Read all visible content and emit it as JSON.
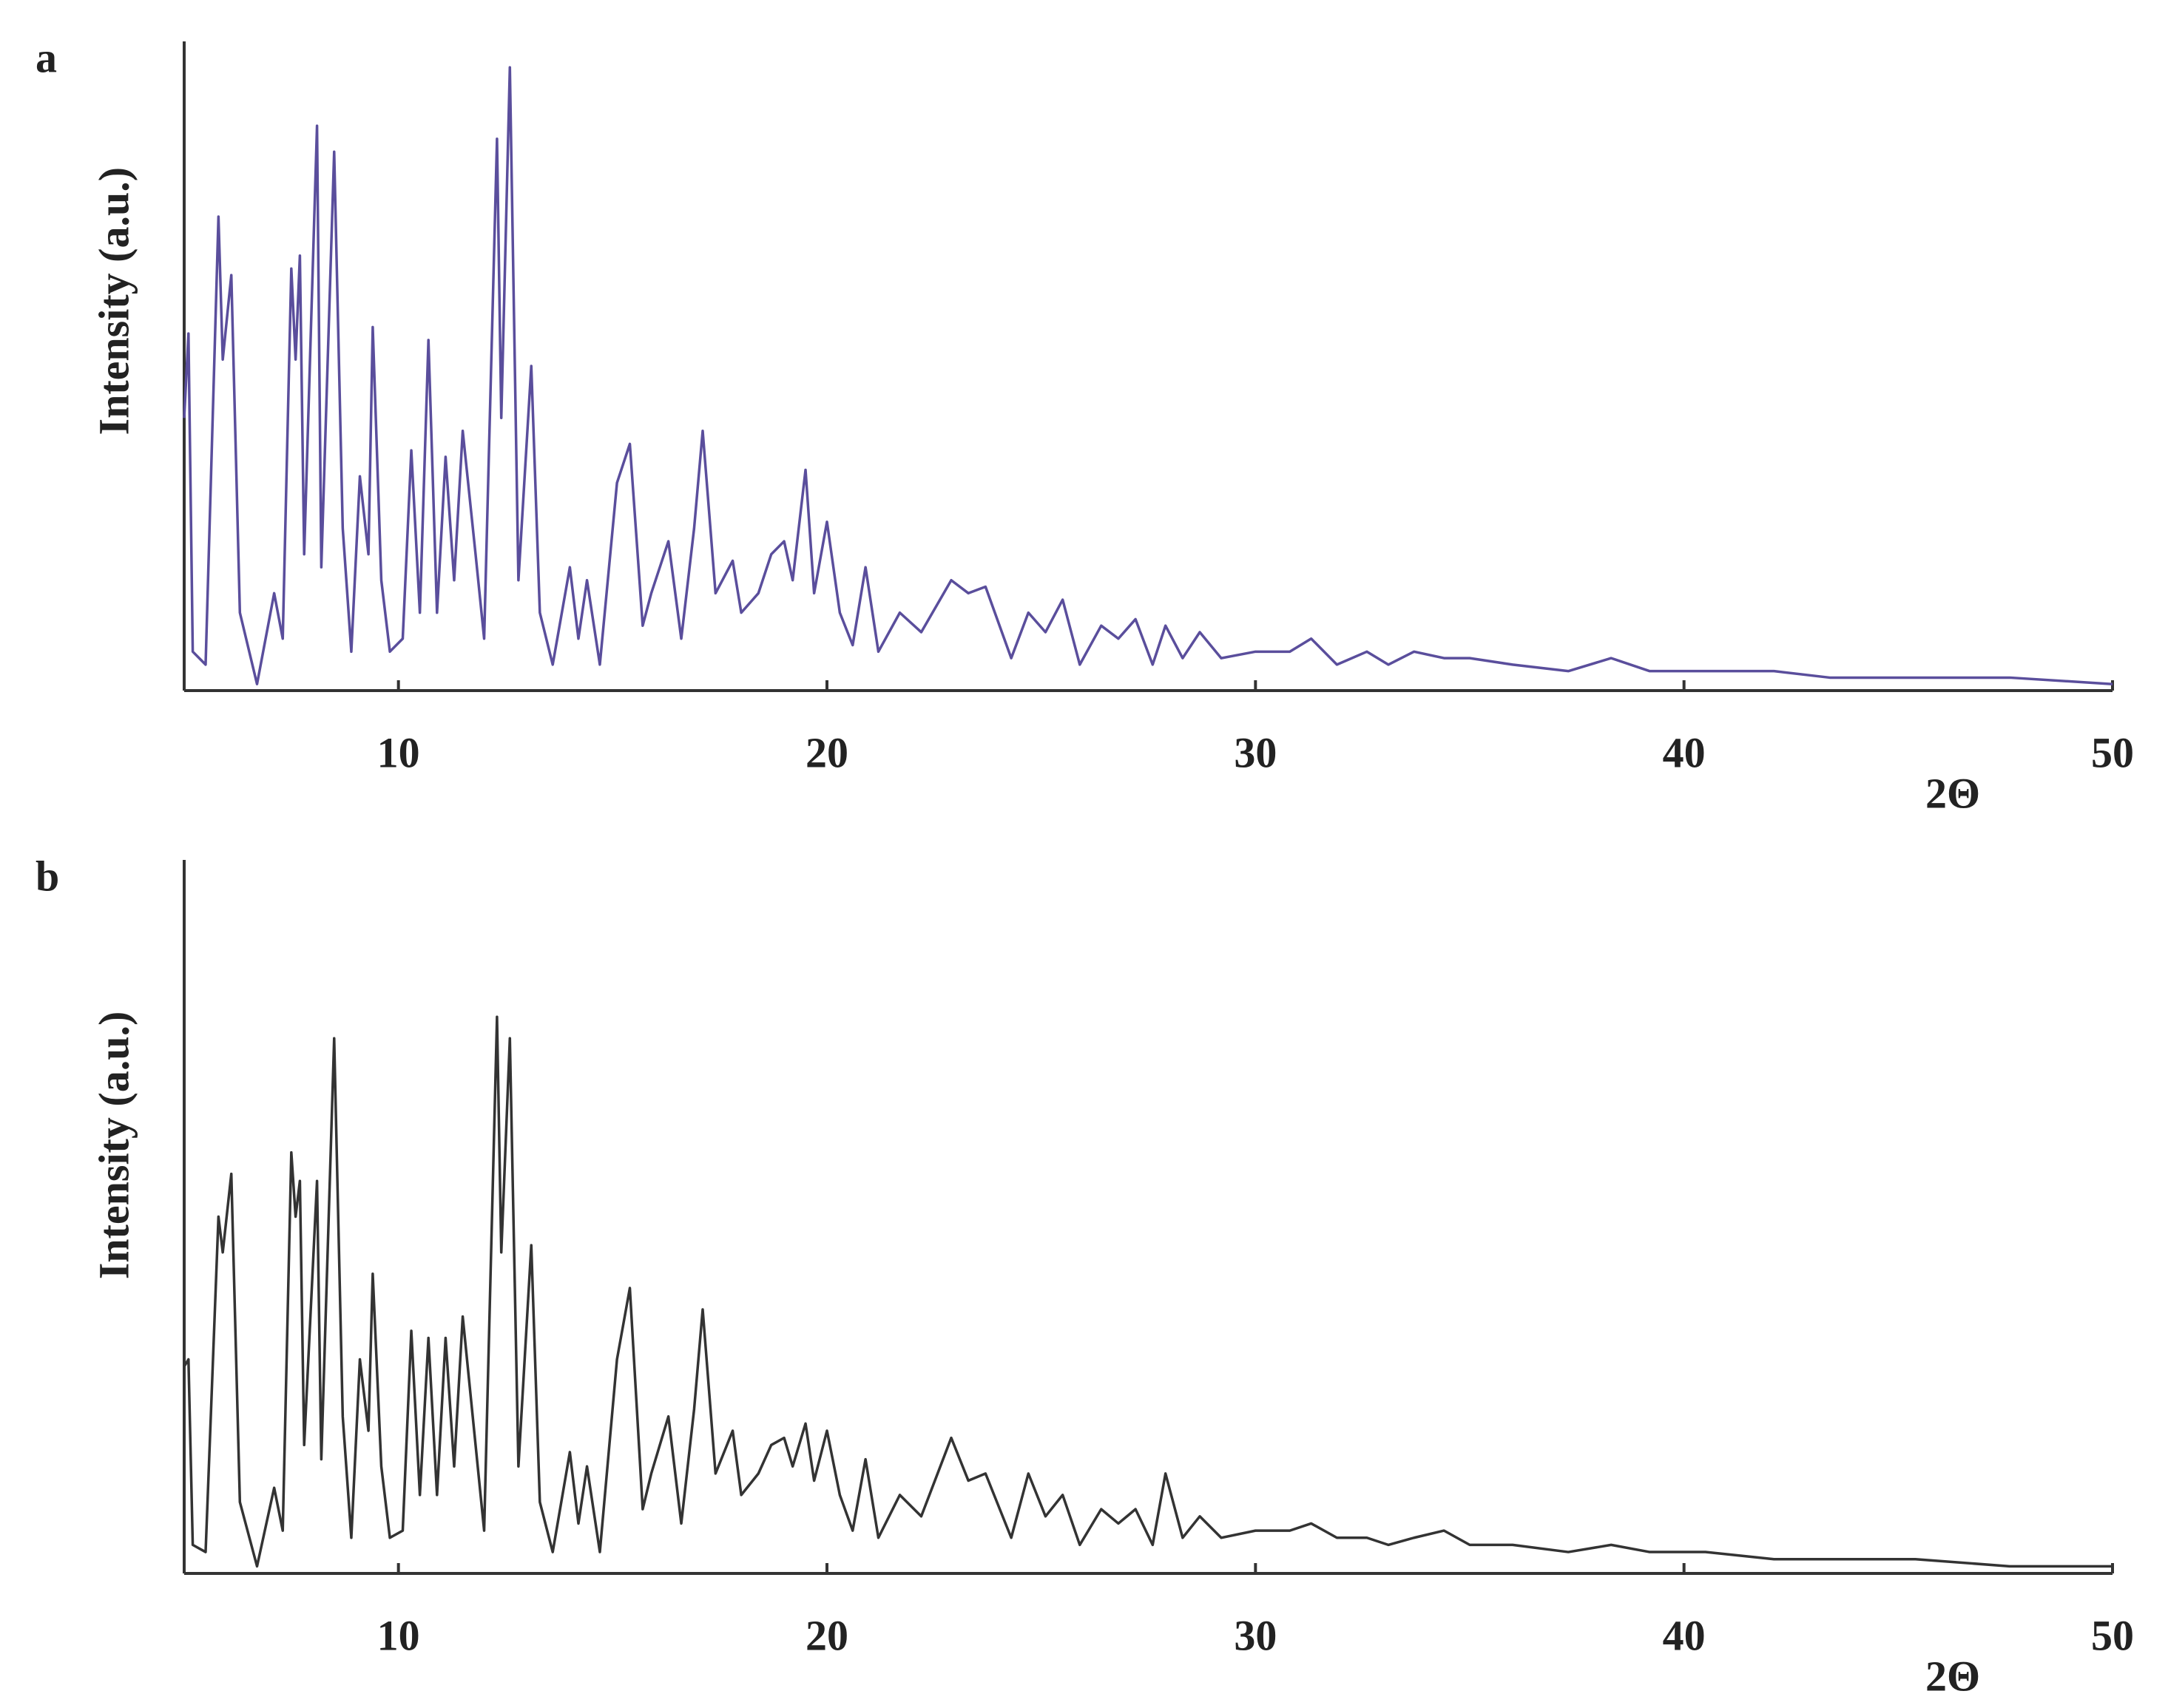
{
  "chart_data": [
    {
      "type": "line",
      "panel_label": "a",
      "x_label": "2Θ",
      "y_label": "Intensity (a.u.)",
      "xlim": [
        5,
        50
      ],
      "xticks": [
        10,
        20,
        30,
        40,
        50
      ],
      "ylim": [
        0,
        100
      ],
      "x": [
        5.0,
        5.1,
        5.2,
        5.5,
        5.8,
        5.9,
        6.1,
        6.3,
        6.7,
        7.1,
        7.3,
        7.5,
        7.6,
        7.7,
        7.8,
        8.1,
        8.2,
        8.5,
        8.7,
        8.9,
        9.1,
        9.3,
        9.4,
        9.6,
        9.8,
        10.1,
        10.3,
        10.5,
        10.7,
        10.9,
        11.1,
        11.3,
        11.5,
        11.8,
        12.0,
        12.3,
        12.4,
        12.6,
        12.8,
        13.1,
        13.3,
        13.6,
        14.0,
        14.2,
        14.4,
        14.7,
        15.1,
        15.4,
        15.7,
        15.9,
        16.3,
        16.6,
        16.9,
        17.1,
        17.4,
        17.8,
        18.0,
        18.4,
        18.7,
        19.0,
        19.2,
        19.5,
        19.7,
        20.0,
        20.3,
        20.6,
        20.9,
        21.2,
        21.7,
        22.2,
        22.9,
        23.3,
        23.7,
        24.3,
        24.7,
        25.1,
        25.5,
        25.9,
        26.4,
        26.8,
        27.2,
        27.6,
        27.9,
        28.3,
        28.7,
        29.2,
        30.0,
        30.8,
        31.3,
        31.9,
        32.6,
        33.1,
        33.7,
        34.4,
        35.0,
        36.0,
        37.3,
        38.3,
        39.2,
        40.5,
        42.1,
        43.4,
        45.4,
        47.6,
        50.0
      ],
      "series": [
        {
          "color": "#5a4e9c",
          "values": [
            42,
            55,
            6,
            4,
            73,
            51,
            64,
            12,
            1,
            15,
            8,
            65,
            51,
            67,
            21,
            87,
            19,
            83,
            25,
            6,
            33,
            21,
            56,
            17,
            6,
            8,
            37,
            12,
            54,
            12,
            36,
            17,
            40,
            21,
            8,
            85,
            42,
            96,
            17,
            50,
            12,
            4,
            19,
            8,
            17,
            4,
            32,
            38,
            10,
            15,
            23,
            8,
            25,
            40,
            15,
            20,
            12,
            15,
            21,
            23,
            17,
            34,
            15,
            26,
            12,
            7,
            19,
            6,
            12,
            9,
            17,
            15,
            16,
            5,
            12,
            9,
            14,
            4,
            10,
            8,
            11,
            4,
            10,
            5,
            9,
            5,
            6,
            6,
            8,
            4,
            6,
            4,
            6,
            5,
            5,
            4,
            3,
            5,
            3,
            3,
            3,
            2,
            2,
            2,
            1
          ]
        }
      ]
    },
    {
      "type": "line",
      "panel_label": "b",
      "x_label": "2Θ",
      "y_label": "Intensity (a.u.)",
      "xlim": [
        5,
        50
      ],
      "xticks": [
        10,
        20,
        30,
        40,
        50
      ],
      "ylim": [
        0,
        100
      ],
      "x": [
        5.0,
        5.1,
        5.2,
        5.5,
        5.8,
        5.9,
        6.1,
        6.3,
        6.7,
        7.1,
        7.3,
        7.5,
        7.6,
        7.7,
        7.8,
        8.1,
        8.2,
        8.5,
        8.7,
        8.9,
        9.1,
        9.3,
        9.4,
        9.6,
        9.8,
        10.1,
        10.3,
        10.5,
        10.7,
        10.9,
        11.1,
        11.3,
        11.5,
        11.8,
        12.0,
        12.3,
        12.4,
        12.6,
        12.8,
        13.1,
        13.3,
        13.6,
        14.0,
        14.2,
        14.4,
        14.7,
        15.1,
        15.4,
        15.7,
        15.9,
        16.3,
        16.6,
        16.9,
        17.1,
        17.4,
        17.8,
        18.0,
        18.4,
        18.7,
        19.0,
        19.2,
        19.5,
        19.7,
        20.0,
        20.3,
        20.6,
        20.9,
        21.2,
        21.7,
        22.2,
        22.9,
        23.3,
        23.7,
        24.3,
        24.7,
        25.1,
        25.5,
        25.9,
        26.4,
        26.8,
        27.2,
        27.6,
        27.9,
        28.3,
        28.7,
        29.2,
        30.0,
        30.8,
        31.3,
        31.9,
        32.6,
        33.1,
        33.7,
        34.4,
        35.0,
        36.0,
        37.3,
        38.3,
        39.2,
        40.5,
        42.1,
        43.4,
        45.4,
        47.6,
        50.0
      ],
      "series": [
        {
          "color": "#333333",
          "values": [
            29,
            30,
            4,
            3,
            50,
            45,
            56,
            10,
            1,
            12,
            6,
            59,
            50,
            55,
            18,
            55,
            16,
            75,
            22,
            5,
            30,
            20,
            42,
            15,
            5,
            6,
            34,
            11,
            33,
            11,
            33,
            15,
            36,
            18,
            6,
            78,
            45,
            75,
            15,
            46,
            10,
            3,
            17,
            7,
            15,
            3,
            30,
            40,
            9,
            14,
            22,
            7,
            23,
            37,
            14,
            20,
            11,
            14,
            18,
            19,
            15,
            21,
            13,
            20,
            11,
            6,
            16,
            5,
            11,
            8,
            19,
            13,
            14,
            5,
            14,
            8,
            11,
            4,
            9,
            7,
            9,
            4,
            14,
            5,
            8,
            5,
            6,
            6,
            7,
            5,
            5,
            4,
            5,
            6,
            4,
            4,
            3,
            4,
            3,
            3,
            2,
            2,
            2,
            1,
            1
          ]
        }
      ]
    }
  ]
}
